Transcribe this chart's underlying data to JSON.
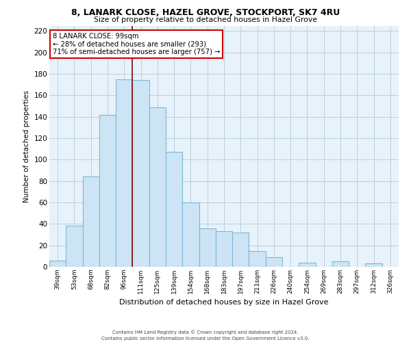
{
  "title": "8, LANARK CLOSE, HAZEL GROVE, STOCKPORT, SK7 4RU",
  "subtitle": "Size of property relative to detached houses in Hazel Grove",
  "xlabel": "Distribution of detached houses by size in Hazel Grove",
  "ylabel": "Number of detached properties",
  "footer_line1": "Contains HM Land Registry data © Crown copyright and database right 2024.",
  "footer_line2": "Contains public sector information licensed under the Open Government Licence v3.0.",
  "categories": [
    "39sqm",
    "53sqm",
    "68sqm",
    "82sqm",
    "96sqm",
    "111sqm",
    "125sqm",
    "139sqm",
    "154sqm",
    "168sqm",
    "183sqm",
    "197sqm",
    "211sqm",
    "226sqm",
    "240sqm",
    "254sqm",
    "269sqm",
    "283sqm",
    "297sqm",
    "312sqm",
    "326sqm"
  ],
  "values": [
    6,
    38,
    84,
    142,
    175,
    174,
    149,
    107,
    60,
    36,
    33,
    32,
    15,
    9,
    0,
    4,
    0,
    5,
    0,
    3,
    0
  ],
  "bar_color": "#cce4f4",
  "bar_edge_color": "#7ab8d9",
  "highlight_bar_index": 4,
  "highlight_line_color": "#8b0000",
  "annotation_text": "8 LANARK CLOSE: 99sqm\n← 28% of detached houses are smaller (293)\n71% of semi-detached houses are larger (757) →",
  "annotation_box_color": "#ffffff",
  "annotation_box_edge_color": "#cc0000",
  "ylim": [
    0,
    225
  ],
  "yticks": [
    0,
    20,
    40,
    60,
    80,
    100,
    120,
    140,
    160,
    180,
    200,
    220
  ],
  "background_color": "#ffffff",
  "grid_color": "#b8cfe0"
}
